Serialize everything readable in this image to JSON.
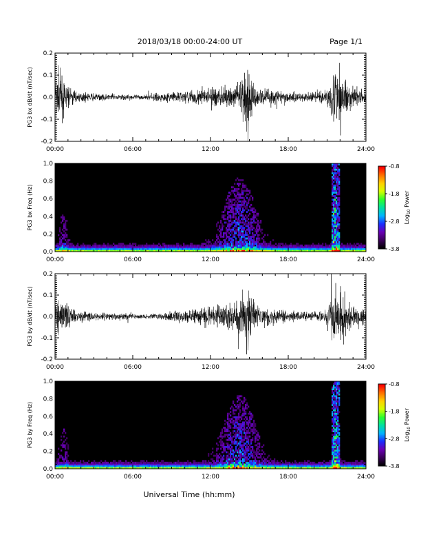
{
  "header": {
    "title": "2018/03/18  00:00-24:00 UT",
    "page": "Page 1/1"
  },
  "footer": {
    "xlabel": "Universal Time (hh:mm)"
  },
  "colors": {
    "background": "#ffffff",
    "trace": "#000000",
    "spectrogram_background": "#000000",
    "colormap": [
      "#000000",
      "#3a0058",
      "#6a00b4",
      "#1a2cff",
      "#00b4ff",
      "#00e0a0",
      "#2cff2c",
      "#d4ff00",
      "#ffd000",
      "#ff7000",
      "#ff0000"
    ]
  },
  "chart_data": [
    {
      "type": "line",
      "ylabel": "PG3 bx dB/dt (nT/sec)",
      "xticks": [
        "00:00",
        "06:00",
        "12:00",
        "18:00",
        "24:00"
      ],
      "xlim_hours": [
        0,
        24
      ],
      "ylim": [
        -0.2,
        0.2
      ],
      "yticks": [
        "-0.2",
        "-0.1",
        "0.0",
        "0.1",
        "0.2"
      ],
      "activity_envelope": {
        "hours": [
          0,
          0.3,
          0.6,
          1.2,
          2,
          3,
          4,
          5,
          6,
          7,
          8,
          9,
          10,
          11,
          12,
          13,
          14,
          14.5,
          15,
          15.5,
          16,
          17,
          18,
          19,
          20,
          21,
          21.5,
          22,
          22.5,
          23,
          24
        ],
        "amplitude": [
          0.2,
          0.2,
          0.15,
          0.07,
          0.03,
          0.03,
          0.025,
          0.025,
          0.02,
          0.02,
          0.03,
          0.04,
          0.05,
          0.06,
          0.07,
          0.08,
          0.09,
          0.2,
          0.2,
          0.08,
          0.07,
          0.06,
          0.05,
          0.04,
          0.04,
          0.06,
          0.2,
          0.2,
          0.12,
          0.08,
          0.06
        ]
      }
    },
    {
      "type": "heatmap",
      "ylabel": "PG3 bx Freq (Hz)",
      "xticks": [
        "00:00",
        "06:00",
        "12:00",
        "18:00",
        "24:00"
      ],
      "xlim_hours": [
        0,
        24
      ],
      "ylim": [
        0,
        1.0
      ],
      "yticks": [
        "0.0",
        "0.2",
        "0.4",
        "0.6",
        "0.8",
        "1.0"
      ],
      "colorbar": {
        "label": "Log10 Power",
        "label_main": "Log",
        "label_sub": "10",
        "label_rest": " Power",
        "range": [
          -3.8,
          -0.8
        ],
        "ticks": [
          "-0.8",
          "-1.8",
          "-2.8",
          "-3.8"
        ]
      }
    },
    {
      "type": "line",
      "ylabel": "PG3 by dB/dt (nT/sec)",
      "xticks": [
        "00:00",
        "06:00",
        "12:00",
        "18:00",
        "24:00"
      ],
      "xlim_hours": [
        0,
        24
      ],
      "ylim": [
        -0.2,
        0.2
      ],
      "yticks": [
        "-0.2",
        "-0.1",
        "0.0",
        "0.1",
        "0.2"
      ],
      "activity_envelope": {
        "hours": [
          0,
          0.3,
          0.6,
          1.2,
          2,
          3,
          4,
          5,
          6,
          7,
          8,
          9,
          10,
          11,
          12,
          13,
          14,
          14.5,
          15,
          15.5,
          16,
          17,
          18,
          19,
          20,
          21,
          21.5,
          22,
          22.5,
          23,
          24
        ],
        "amplitude": [
          0.1,
          0.15,
          0.15,
          0.08,
          0.04,
          0.035,
          0.03,
          0.025,
          0.02,
          0.02,
          0.03,
          0.045,
          0.055,
          0.06,
          0.08,
          0.09,
          0.1,
          0.2,
          0.2,
          0.09,
          0.07,
          0.06,
          0.05,
          0.04,
          0.04,
          0.06,
          0.2,
          0.2,
          0.13,
          0.08,
          0.06
        ]
      }
    },
    {
      "type": "heatmap",
      "ylabel": "PG3 by Freq (Hz)",
      "xticks": [
        "00:00",
        "06:00",
        "12:00",
        "18:00",
        "24:00"
      ],
      "xlim_hours": [
        0,
        24
      ],
      "ylim": [
        0,
        1.0
      ],
      "yticks": [
        "0.0",
        "0.2",
        "0.4",
        "0.6",
        "0.8",
        "1.0"
      ],
      "colorbar": {
        "label": "Log10 Power",
        "label_main": "Log",
        "label_sub": "10",
        "label_rest": " Power",
        "range": [
          -3.8,
          -0.8
        ],
        "ticks": [
          "-0.8",
          "-1.8",
          "-2.8",
          "-3.8"
        ]
      }
    }
  ]
}
